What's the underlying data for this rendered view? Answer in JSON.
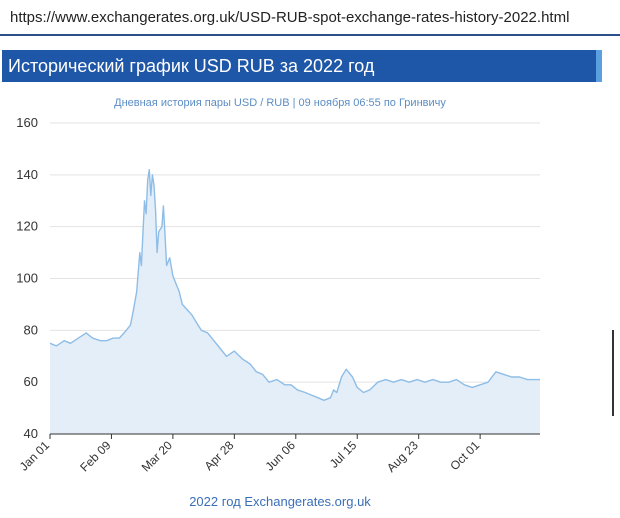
{
  "browser": {
    "url": "https://www.exchangerates.org.uk/USD-RUB-spot-exchange-rates-history-2022.html"
  },
  "page": {
    "header_title": "Исторический график USD RUB за 2022 год"
  },
  "chart_data": {
    "type": "area",
    "title": "",
    "subtitle": "Дневная история пары USD / RUB | 09 ноября 06:55 по Гринвичу",
    "footer": "2022 год Exchangerates.org.uk",
    "xlabel": "",
    "ylabel": "",
    "ylim": [
      40,
      160
    ],
    "yticks": [
      40,
      60,
      80,
      100,
      120,
      140,
      160
    ],
    "xlim": [
      "2022-01-01",
      "2022-11-08"
    ],
    "xticks": [
      {
        "date": "2022-01-01",
        "label": "Jan 01"
      },
      {
        "date": "2022-02-09",
        "label": "Feb 09"
      },
      {
        "date": "2022-03-20",
        "label": "Mar 20"
      },
      {
        "date": "2022-04-28",
        "label": "Apr 28"
      },
      {
        "date": "2022-06-06",
        "label": "Jun 06"
      },
      {
        "date": "2022-07-15",
        "label": "Jul 15"
      },
      {
        "date": "2022-08-23",
        "label": "Aug 23"
      },
      {
        "date": "2022-10-01",
        "label": "Oct 01"
      }
    ],
    "grid": true,
    "colors": {
      "line": "#8fbde6",
      "fill": "#e3eef9",
      "grid": "#e3e3e3",
      "axis": "#333333"
    },
    "series": [
      {
        "name": "",
        "x": [
          "2022-01-01",
          "2022-01-05",
          "2022-01-10",
          "2022-01-14",
          "2022-01-19",
          "2022-01-24",
          "2022-01-28",
          "2022-02-02",
          "2022-02-06",
          "2022-02-10",
          "2022-02-14",
          "2022-02-17",
          "2022-02-21",
          "2022-02-23",
          "2022-02-25",
          "2022-02-27",
          "2022-02-28",
          "2022-03-01",
          "2022-03-02",
          "2022-03-03",
          "2022-03-04",
          "2022-03-05",
          "2022-03-06",
          "2022-03-07",
          "2022-03-08",
          "2022-03-09",
          "2022-03-10",
          "2022-03-11",
          "2022-03-13",
          "2022-03-14",
          "2022-03-15",
          "2022-03-16",
          "2022-03-18",
          "2022-03-20",
          "2022-03-22",
          "2022-03-24",
          "2022-03-26",
          "2022-03-29",
          "2022-04-01",
          "2022-04-04",
          "2022-04-07",
          "2022-04-11",
          "2022-04-15",
          "2022-04-19",
          "2022-04-23",
          "2022-04-28",
          "2022-05-03",
          "2022-05-08",
          "2022-05-12",
          "2022-05-16",
          "2022-05-20",
          "2022-05-25",
          "2022-05-30",
          "2022-06-03",
          "2022-06-07",
          "2022-06-12",
          "2022-06-16",
          "2022-06-20",
          "2022-06-24",
          "2022-06-28",
          "2022-06-30",
          "2022-07-02",
          "2022-07-05",
          "2022-07-08",
          "2022-07-12",
          "2022-07-15",
          "2022-07-19",
          "2022-07-23",
          "2022-07-28",
          "2022-08-02",
          "2022-08-07",
          "2022-08-12",
          "2022-08-17",
          "2022-08-22",
          "2022-08-27",
          "2022-09-01",
          "2022-09-06",
          "2022-09-11",
          "2022-09-16",
          "2022-09-21",
          "2022-09-26",
          "2022-10-01",
          "2022-10-06",
          "2022-10-11",
          "2022-10-16",
          "2022-10-21",
          "2022-10-26",
          "2022-10-31",
          "2022-11-04",
          "2022-11-08"
        ],
        "values": [
          75,
          74,
          76,
          75,
          77,
          79,
          77,
          76,
          76,
          77,
          77,
          79,
          82,
          88,
          95,
          110,
          105,
          118,
          130,
          125,
          138,
          142,
          132,
          140,
          136,
          126,
          110,
          118,
          120,
          128,
          117,
          105,
          108,
          101,
          98,
          95,
          90,
          88,
          86,
          83,
          80,
          79,
          76,
          73,
          70,
          72,
          69,
          67,
          64,
          63,
          60,
          61,
          59,
          59,
          57,
          56,
          55,
          54,
          53,
          54,
          57,
          56,
          62,
          65,
          62,
          58,
          56,
          57,
          60,
          61,
          60,
          61,
          60,
          61,
          60,
          61,
          60,
          60,
          61,
          59,
          58,
          59,
          60,
          64,
          63,
          62,
          62,
          61,
          61,
          61
        ]
      }
    ]
  }
}
